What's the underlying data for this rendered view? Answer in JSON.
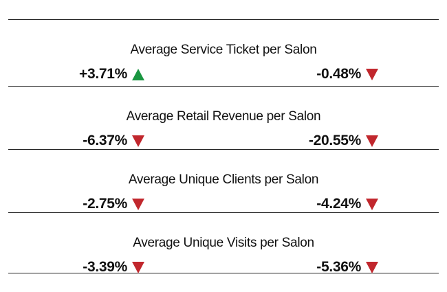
{
  "colors": {
    "up": "#1a9641",
    "down": "#c1272d"
  },
  "metrics": [
    {
      "title": "Average Service Ticket per Salon",
      "left": {
        "value": "+3.71%",
        "direction": "up"
      },
      "right": {
        "value": "-0.48%",
        "direction": "down"
      }
    },
    {
      "title": "Average Retail Revenue per Salon",
      "left": {
        "value": "-6.37%",
        "direction": "down"
      },
      "right": {
        "value": "-20.55%",
        "direction": "down"
      }
    },
    {
      "title": "Average Unique Clients per Salon",
      "left": {
        "value": "-2.75%",
        "direction": "down"
      },
      "right": {
        "value": "-4.24%",
        "direction": "down"
      }
    },
    {
      "title": "Average Unique Visits per Salon",
      "left": {
        "value": "-3.39%",
        "direction": "down"
      },
      "right": {
        "value": "-5.36%",
        "direction": "down"
      }
    }
  ]
}
